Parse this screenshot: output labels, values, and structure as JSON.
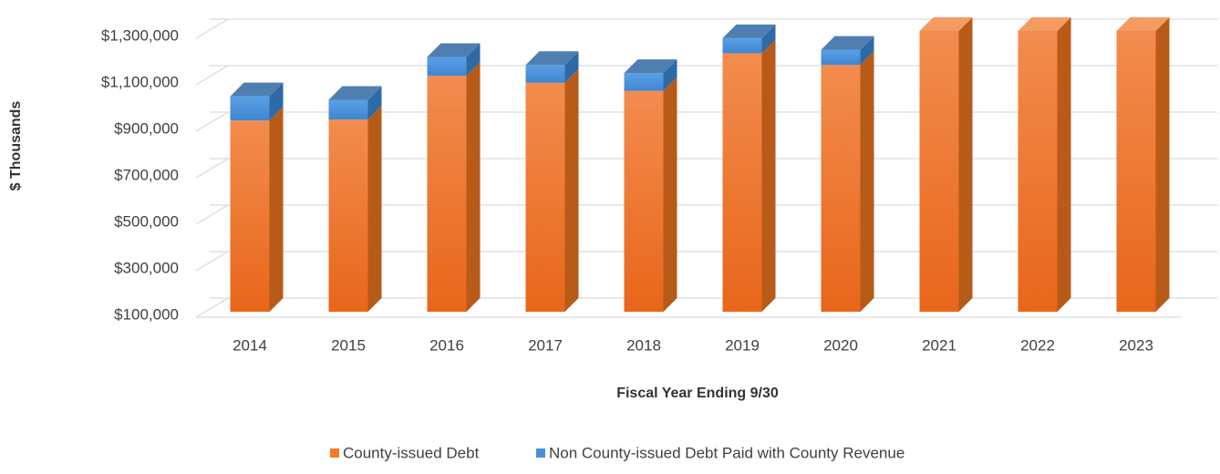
{
  "chart_data": {
    "type": "bar3d_stacked",
    "x_label": "Fiscal Year Ending 9/30",
    "y_label": "$ Thousands",
    "categories": [
      "2014",
      "2015",
      "2016",
      "2017",
      "2018",
      "2019",
      "2020",
      "2021",
      "2022",
      "2023"
    ],
    "series": [
      {
        "name": "County-issued Debt",
        "color": "#f47b20",
        "values": [
          923000,
          927000,
          1115000,
          1085000,
          1050000,
          1212000,
          1162000,
          1308000,
          1308000,
          1308000
        ]
      },
      {
        "name": "Non County-issued Debt Paid with County Revenue",
        "color": "#4a90d9",
        "values": [
          104000,
          85000,
          81000,
          77000,
          77000,
          65000,
          65000,
          0,
          0,
          0
        ]
      }
    ],
    "ylim": [
      100000,
      1300000
    ],
    "yticks": [
      {
        "value": 100000,
        "label": "$100,000"
      },
      {
        "value": 300000,
        "label": "$300,000"
      },
      {
        "value": 500000,
        "label": "$500,000"
      },
      {
        "value": 700000,
        "label": "$700,000"
      },
      {
        "value": 900000,
        "label": "$900,000"
      },
      {
        "value": 1100000,
        "label": "$1,100,000"
      },
      {
        "value": 1300000,
        "label": "$1,300,000"
      }
    ],
    "grid": true
  }
}
